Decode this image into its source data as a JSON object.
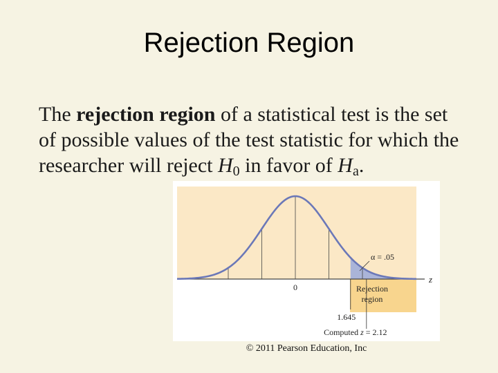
{
  "slide": {
    "title": "Rejection Region",
    "body": {
      "prefix": "The ",
      "bold_term": "rejection region",
      "middle": " of a statistical test is the set of possible values of the test statistic for which the researcher will reject ",
      "h_letter": "H",
      "h0_sub": "0",
      "after_h0": " in favor of ",
      "ha_letter": "H",
      "ha_sub": "a",
      "end": "."
    },
    "copyright": "© 2011 Pearson Education, Inc"
  },
  "figure": {
    "axis_label": "z",
    "center_label": "0",
    "alpha_label": "α = .05",
    "rejection_label_line1": "Rejection",
    "rejection_label_line2": "region",
    "critical_value_label": "1.645",
    "computed_label_prefix": "Computed ",
    "computed_label_var": "z",
    "computed_label_value": " = 2.12",
    "critical_value": 1.645,
    "computed_value": 2.12,
    "alpha": 0.05,
    "colors": {
      "panel": "#fbe8c6",
      "curve": "#6b78b8",
      "shade": "#aab4d8",
      "rejection_bg": "#f8d58e"
    }
  }
}
